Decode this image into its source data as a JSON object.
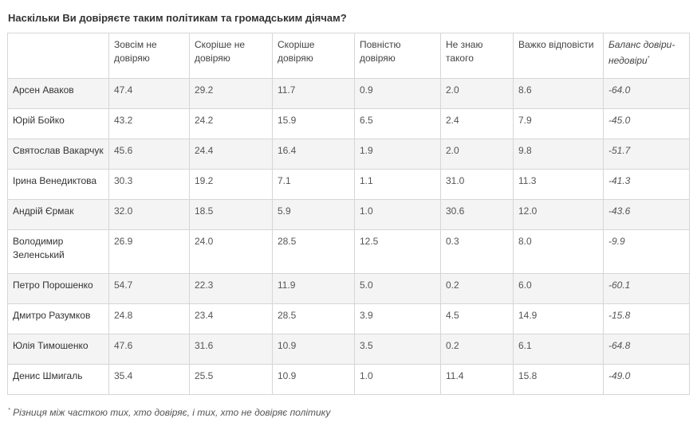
{
  "title": "Наскільки Ви довіряєте таким політикам та громадським діячам?",
  "columns": [
    "",
    "Зовсім не довіряю",
    "Скоріше не довіряю",
    "Скоріше довіряю",
    "Повністю довіряю",
    "Не знаю такого",
    "Важко відповісти",
    "Баланс довіри-недовіри"
  ],
  "footnote_marker": "*",
  "rows": [
    {
      "name": "Арсен Аваков",
      "values": [
        "47.4",
        "29.2",
        "11.7",
        "0.9",
        "2.0",
        "8.6",
        "-64.0"
      ]
    },
    {
      "name": "Юрій Бойко",
      "values": [
        "43.2",
        "24.2",
        "15.9",
        "6.5",
        "2.4",
        "7.9",
        "-45.0"
      ]
    },
    {
      "name": "Святослав Вакарчук",
      "values": [
        "45.6",
        "24.4",
        "16.4",
        "1.9",
        "2.0",
        "9.8",
        "-51.7"
      ]
    },
    {
      "name": "Ірина Венедиктова",
      "values": [
        "30.3",
        "19.2",
        "7.1",
        "1.1",
        "31.0",
        "11.3",
        "-41.3"
      ]
    },
    {
      "name": "Андрій Єрмак",
      "values": [
        "32.0",
        "18.5",
        "5.9",
        "1.0",
        "30.6",
        "12.0",
        "-43.6"
      ]
    },
    {
      "name": "Володимир Зеленський",
      "values": [
        "26.9",
        "24.0",
        "28.5",
        "12.5",
        "0.3",
        "8.0",
        "-9.9"
      ]
    },
    {
      "name": "Петро Порошенко",
      "values": [
        "54.7",
        "22.3",
        "11.9",
        "5.0",
        "0.2",
        "6.0",
        "-60.1"
      ]
    },
    {
      "name": "Дмитро Разумков",
      "values": [
        "24.8",
        "23.4",
        "28.5",
        "3.9",
        "4.5",
        "14.9",
        "-15.8"
      ]
    },
    {
      "name": "Юлія Тимошенко",
      "values": [
        "47.6",
        "31.6",
        "10.9",
        "3.5",
        "0.2",
        "6.1",
        "-64.8"
      ]
    },
    {
      "name": "Денис Шмигаль",
      "values": [
        "35.4",
        "25.5",
        "10.9",
        "1.0",
        "11.4",
        "15.8",
        "-49.0"
      ]
    }
  ],
  "footnote": "Різниця між часткою тих, хто довіряє, і тих, хто не довіряє політику"
}
